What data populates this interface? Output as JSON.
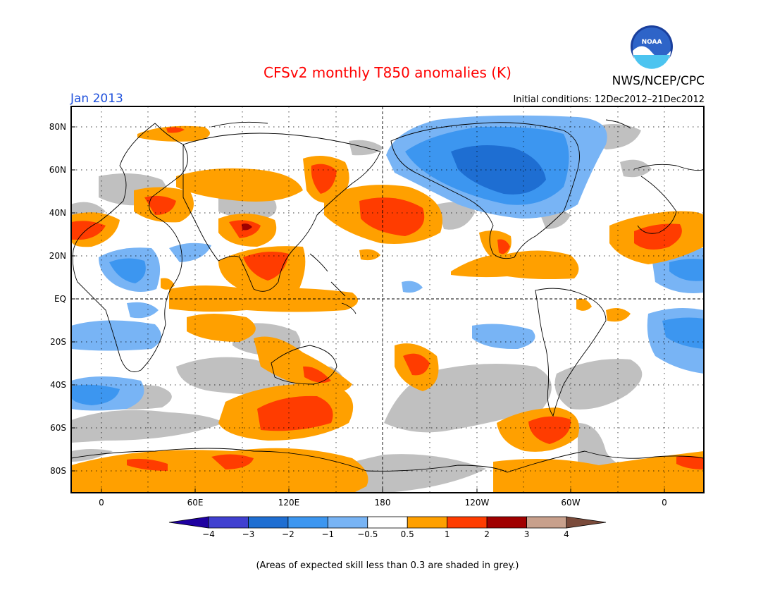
{
  "title": "CFSv2 monthly T850 anomalies (K)",
  "title_color": "#ff0000",
  "month_label": "Jan 2013",
  "month_color": "#1e50dc",
  "agency": "NWS/NCEP/CPC",
  "logo_text": "NOAA",
  "initial_conditions": "Initial conditions: 12Dec2012–21Dec2012",
  "footnote": "(Areas of expected skill less than 0.3 are shaded in grey.)",
  "map": {
    "lat_labels": [
      "80N",
      "60N",
      "40N",
      "20N",
      "EQ",
      "20S",
      "40S",
      "60S",
      "80S"
    ],
    "lon_labels": [
      "0",
      "60E",
      "120E",
      "180",
      "120W",
      "60W",
      "0"
    ],
    "grey_color": "#c0c0c0"
  },
  "legend": {
    "colors": [
      "#1e00a0",
      "#4040d0",
      "#1e6ed2",
      "#3c96f0",
      "#78b4f5",
      "#ffffff",
      "#ffa000",
      "#ff3c00",
      "#a00000",
      "#c8a08c",
      "#7a4a3a"
    ],
    "labels": [
      "−4",
      "−3",
      "−2",
      "−1",
      "−0.5",
      "0.5",
      "1",
      "2",
      "3",
      "4"
    ]
  }
}
